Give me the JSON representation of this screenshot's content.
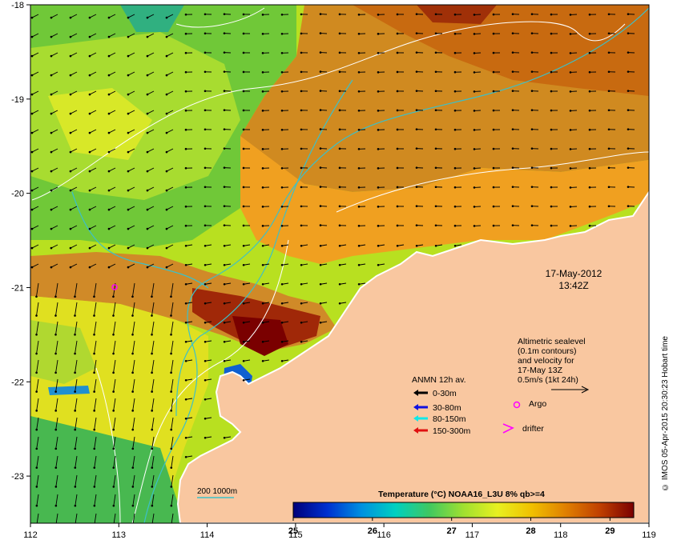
{
  "map": {
    "lon_range": [
      112,
      119
    ],
    "lat_range": [
      -23.5,
      -18
    ],
    "x_ticks": [
      "112",
      "113",
      "114",
      "115",
      "116",
      "117",
      "118",
      "119"
    ],
    "y_ticks": [
      "-18",
      "-19",
      "-20",
      "-21",
      "-22",
      "-23"
    ],
    "colors": {
      "land": "#f9c7a0",
      "coast": "#ffffff",
      "contour": "#ffffff",
      "isobath": "#3cc0c8"
    }
  },
  "date_label": {
    "date": "17-May-2012",
    "time": "13:42Z"
  },
  "velocity_note": {
    "line1": "Altimetric sealevel",
    "line2": "(0.1m contours)",
    "line3": "and velocity for",
    "line4": "17-May 13Z",
    "line5": "0.5m/s (1kt 24h)"
  },
  "legend": {
    "title": "ANMN 12h av.",
    "items": [
      {
        "label": "0-30m",
        "color": "#000000"
      },
      {
        "label": "30-80m",
        "color": "#1010e0"
      },
      {
        "label": "80-150m",
        "color": "#10e8e8"
      },
      {
        "label": "150-300m",
        "color": "#e01010"
      }
    ],
    "argo": {
      "label": "Argo",
      "color": "#ff00ff"
    },
    "drifter": {
      "label": "drifter",
      "color": "#ff00ff"
    }
  },
  "scale_bar": {
    "label": "200  1000m"
  },
  "colorbar": {
    "title": "Temperature (°C) NOAA16_L3U 8% qb>=4",
    "ticks": [
      "25",
      "26",
      "27",
      "28",
      "29"
    ],
    "range": [
      25,
      29.3
    ],
    "stops": [
      "#00007a",
      "#0030d0",
      "#0090e0",
      "#00d0c0",
      "#40c860",
      "#a0e030",
      "#e8f020",
      "#f0c000",
      "#e08000",
      "#c04000",
      "#7a0000"
    ]
  },
  "credit": "© IMOS 05-Apr-2015 20:30:23 Hobart time"
}
